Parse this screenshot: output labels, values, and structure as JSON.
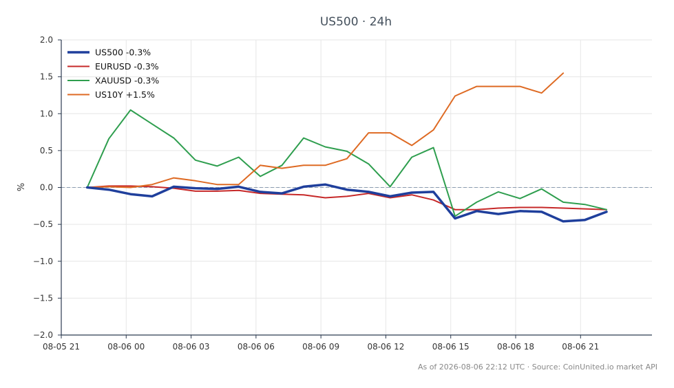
{
  "chart_data": {
    "type": "line",
    "title": "US500 · 24h",
    "xlabel": "",
    "ylabel": "%",
    "ylim": [
      -2.0,
      2.0
    ],
    "xlim": [
      "08-05 21:00",
      "08-07 00:18"
    ],
    "x_tick_labels": [
      "08-05 21",
      "08-06 00",
      "08-06 03",
      "08-06 06",
      "08-06 09",
      "08-06 12",
      "08-06 15",
      "08-06 18",
      "08-06 21"
    ],
    "y_tick_labels": [
      "2.0",
      "1.5",
      "1.0",
      "0.5",
      "0.0",
      "−0.5",
      "−1.0",
      "−1.5",
      "−2.0"
    ],
    "y_ticks": [
      2.0,
      1.5,
      1.0,
      0.5,
      0.0,
      -0.5,
      -1.0,
      -1.5,
      -2.0
    ],
    "grid": true,
    "zero_line": true,
    "legend_position": "top-left",
    "x": [
      "08-05 22:12",
      "08-05 23:12",
      "08-06 00:12",
      "08-06 01:12",
      "08-06 02:12",
      "08-06 03:12",
      "08-06 04:12",
      "08-06 05:12",
      "08-06 06:12",
      "08-06 07:12",
      "08-06 08:12",
      "08-06 09:12",
      "08-06 10:12",
      "08-06 11:12",
      "08-06 12:12",
      "08-06 13:12",
      "08-06 14:12",
      "08-06 15:12",
      "08-06 16:12",
      "08-06 17:12",
      "08-06 18:12",
      "08-06 19:12",
      "08-06 20:12",
      "08-06 21:12",
      "08-06 22:12"
    ],
    "series": [
      {
        "name": "US500 -0.3%",
        "color": "#1f3f9c",
        "width": 3.5,
        "values": [
          0.0,
          -0.03,
          -0.09,
          -0.12,
          0.01,
          -0.01,
          -0.02,
          0.01,
          -0.06,
          -0.08,
          0.01,
          0.04,
          -0.03,
          -0.06,
          -0.12,
          -0.07,
          -0.06,
          -0.42,
          -0.32,
          -0.36,
          -0.32,
          -0.33,
          -0.46,
          -0.44,
          -0.33
        ]
      },
      {
        "name": "EURUSD -0.3%",
        "color": "#c62828",
        "width": 2,
        "values": [
          0.0,
          0.02,
          0.02,
          0.01,
          -0.01,
          -0.05,
          -0.05,
          -0.04,
          -0.08,
          -0.09,
          -0.1,
          -0.14,
          -0.12,
          -0.08,
          -0.14,
          -0.1,
          -0.17,
          -0.3,
          -0.3,
          -0.28,
          -0.27,
          -0.27,
          -0.28,
          -0.29,
          -0.3
        ]
      },
      {
        "name": "XAUUSD -0.3%",
        "color": "#2e9e4e",
        "width": 2,
        "values": [
          0.0,
          0.66,
          1.05,
          0.86,
          0.67,
          0.37,
          0.29,
          0.41,
          0.15,
          0.3,
          0.67,
          0.55,
          0.49,
          0.32,
          0.01,
          0.41,
          0.54,
          -0.39,
          -0.2,
          -0.06,
          -0.15,
          -0.02,
          -0.2,
          -0.23,
          -0.3
        ]
      },
      {
        "name": "US10Y +1.5%",
        "color": "#de6a23",
        "width": 2,
        "values": [
          0.0,
          0.01,
          0.0,
          0.04,
          0.13,
          0.09,
          0.04,
          0.04,
          0.3,
          0.26,
          0.3,
          0.3,
          0.39,
          0.74,
          0.74,
          0.57,
          0.78,
          1.24,
          1.37,
          1.37,
          1.37,
          1.28,
          1.55,
          null,
          null
        ]
      }
    ]
  },
  "footer": "As of 2026-08-06 22:12 UTC · Source: CoinUnited.io market API",
  "colors": {
    "axis": "#2b3a4f",
    "grid": "#e6e6e6",
    "zero_line": "#8a9bb0"
  }
}
